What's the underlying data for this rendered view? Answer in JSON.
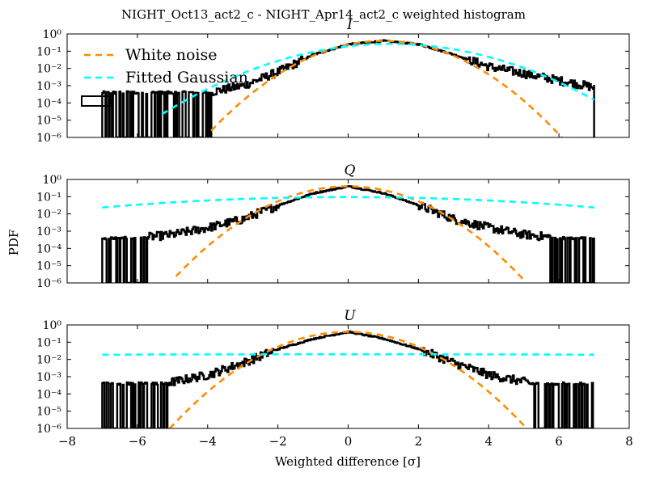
{
  "figure": {
    "title": "NIGHT_Oct13_act2_c - NIGHT_Apr14_act2_c weighted histogram",
    "ylabel": "PDF",
    "xlabel": "Weighted difference [σ]",
    "legend": [
      "White noise",
      "Fitted Gaussian"
    ]
  },
  "colors": {
    "white_noise": "#ff8c00",
    "gaussian": "#00ffff",
    "histogram": "#000000"
  },
  "chart_data": [
    {
      "type": "line",
      "panel_title": "I",
      "xlim": [
        -8,
        8
      ],
      "ylim_log10": [
        -6,
        0
      ],
      "xticks": [
        "−8",
        "−6",
        "−4",
        "−2",
        "0",
        "2",
        "4",
        "6",
        "8"
      ],
      "yticks": [
        "10⁰",
        "10⁻¹",
        "10⁻²",
        "10⁻³",
        "10⁻⁴",
        "10⁻⁵",
        "10⁻⁶"
      ],
      "legend": "upper-left",
      "series": [
        {
          "name": "White noise",
          "style": "dashed",
          "mu": 1.0,
          "sigma": 1.0,
          "xrange": [
            -3.9,
            6.5
          ]
        },
        {
          "name": "Fitted Gaussian",
          "style": "dashed",
          "mu": 1.2,
          "sigma": 1.5,
          "xrange": [
            -5.3,
            7.0
          ]
        },
        {
          "style": "histogram",
          "points": [
            [
              -7.0,
              -6.0
            ],
            [
              -6.0,
              -3.6
            ],
            [
              -5.0,
              -3.5
            ],
            [
              -4.0,
              -3.4
            ],
            [
              -3.0,
              -3.0
            ],
            [
              -2.0,
              -2.2
            ],
            [
              -1.0,
              -1.2
            ],
            [
              0.0,
              -0.6
            ],
            [
              1.0,
              -0.4
            ],
            [
              2.0,
              -0.6
            ],
            [
              3.0,
              -1.2
            ],
            [
              4.0,
              -1.9
            ],
            [
              5.0,
              -2.3
            ],
            [
              6.0,
              -2.7
            ],
            [
              7.0,
              -3.1
            ]
          ],
          "noise_floor": -3.4
        }
      ]
    },
    {
      "type": "line",
      "panel_title": "Q",
      "xlim": [
        -8,
        8
      ],
      "ylim_log10": [
        -6,
        0
      ],
      "xticks": [
        "−8",
        "−6",
        "−4",
        "−2",
        "0",
        "2",
        "4",
        "6",
        "8"
      ],
      "yticks": [
        "10⁰",
        "10⁻¹",
        "10⁻²",
        "10⁻³",
        "10⁻⁴",
        "10⁻⁵",
        "10⁻⁶"
      ],
      "series": [
        {
          "name": "White noise",
          "style": "dashed",
          "mu": 0.0,
          "sigma": 1.0,
          "xrange": [
            -4.9,
            5.0
          ]
        },
        {
          "name": "Fitted Gaussian",
          "style": "dashed",
          "mu": 0.0,
          "sigma": 4.2,
          "xrange": [
            -7.0,
            7.0
          ]
        },
        {
          "style": "histogram",
          "points": [
            [
              -7.0,
              -6.0
            ],
            [
              -6.0,
              -3.4
            ],
            [
              -5.0,
              -3.2
            ],
            [
              -4.0,
              -2.8
            ],
            [
              -3.0,
              -2.3
            ],
            [
              -2.0,
              -1.5
            ],
            [
              -1.0,
              -0.8
            ],
            [
              0.0,
              -0.4
            ],
            [
              1.0,
              -0.8
            ],
            [
              2.0,
              -1.5
            ],
            [
              3.0,
              -2.3
            ],
            [
              4.0,
              -2.8
            ],
            [
              5.0,
              -3.2
            ],
            [
              6.0,
              -3.4
            ],
            [
              7.0,
              -6.0
            ]
          ],
          "noise_floor": -3.4
        }
      ]
    },
    {
      "type": "line",
      "panel_title": "U",
      "xlim": [
        -8,
        8
      ],
      "ylim_log10": [
        -6,
        0
      ],
      "xticks": [
        "−8",
        "−6",
        "−4",
        "−2",
        "0",
        "2",
        "4",
        "6",
        "8"
      ],
      "yticks": [
        "10⁰",
        "10⁻¹",
        "10⁻²",
        "10⁻³",
        "10⁻⁴",
        "10⁻⁵",
        "10⁻⁶"
      ],
      "series": [
        {
          "name": "White noise",
          "style": "dashed",
          "mu": 0.0,
          "sigma": 1.0,
          "xrange": [
            -5.3,
            5.2
          ]
        },
        {
          "name": "Fitted Gaussian",
          "style": "dashed",
          "mu": 0.0,
          "sigma": 20.0,
          "xrange": [
            -7.0,
            7.0
          ]
        },
        {
          "style": "histogram",
          "points": [
            [
              -7.0,
              -6.0
            ],
            [
              -6.0,
              -3.6
            ],
            [
              -5.0,
              -3.3
            ],
            [
              -4.0,
              -2.9
            ],
            [
              -3.0,
              -2.2
            ],
            [
              -2.0,
              -1.4
            ],
            [
              -1.0,
              -0.8
            ],
            [
              0.0,
              -0.4
            ],
            [
              1.0,
              -0.8
            ],
            [
              2.0,
              -1.4
            ],
            [
              3.0,
              -2.2
            ],
            [
              4.0,
              -2.9
            ],
            [
              5.0,
              -3.3
            ],
            [
              6.0,
              -3.6
            ],
            [
              7.0,
              -6.0
            ]
          ],
          "noise_floor": -3.4
        }
      ]
    }
  ]
}
